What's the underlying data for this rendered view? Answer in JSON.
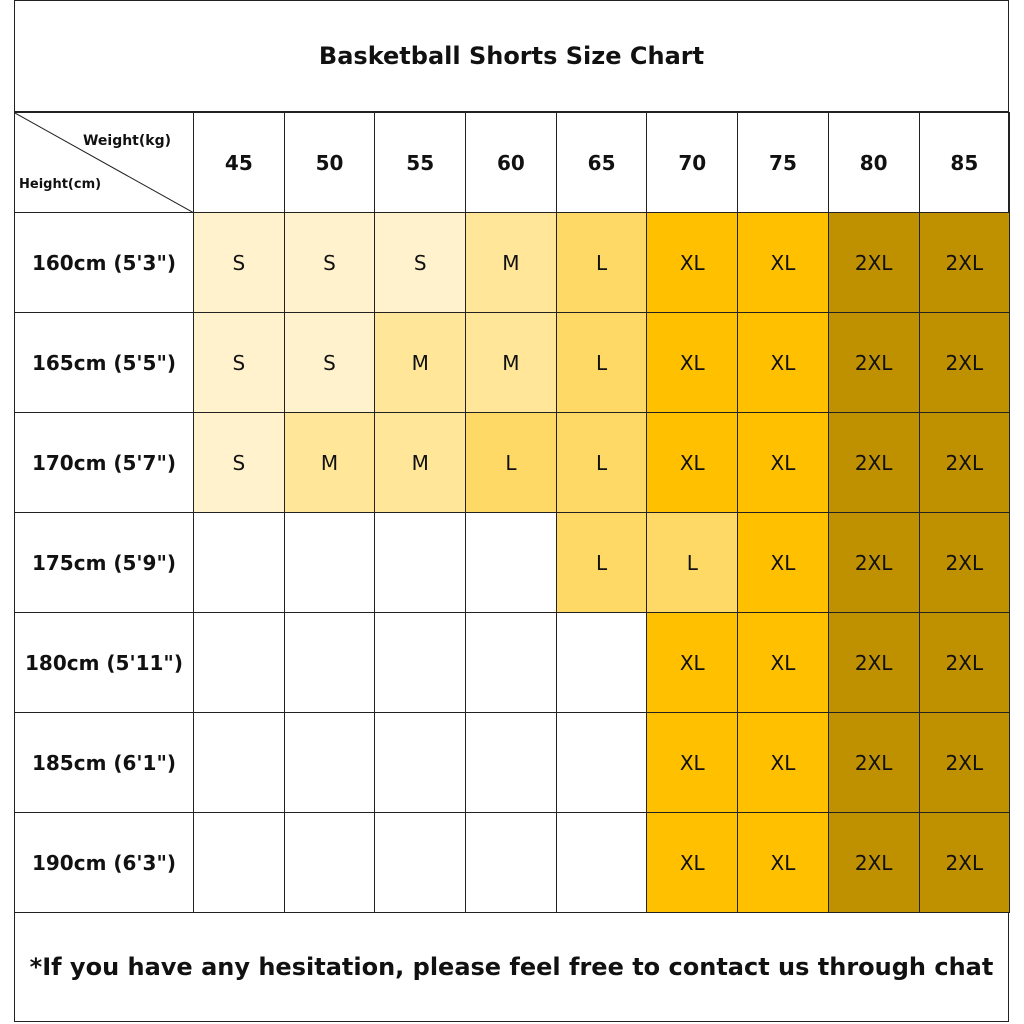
{
  "title": "Basketball Shorts Size Chart",
  "corner": {
    "weight_label": "Weight(kg)",
    "height_label": "Height(cm)"
  },
  "weights": [
    "45",
    "50",
    "55",
    "60",
    "65",
    "70",
    "75",
    "80",
    "85"
  ],
  "rows": [
    {
      "height": "160cm (5'3\")",
      "sizes": [
        "S",
        "S",
        "S",
        "M",
        "L",
        "XL",
        "XL",
        "2XL",
        "2XL"
      ]
    },
    {
      "height": "165cm (5'5\")",
      "sizes": [
        "S",
        "S",
        "M",
        "M",
        "L",
        "XL",
        "XL",
        "2XL",
        "2XL"
      ]
    },
    {
      "height": "170cm (5'7\")",
      "sizes": [
        "S",
        "M",
        "M",
        "L",
        "L",
        "XL",
        "XL",
        "2XL",
        "2XL"
      ]
    },
    {
      "height": "175cm (5'9\")",
      "sizes": [
        "",
        "",
        "",
        "",
        "L",
        "L",
        "XL",
        "2XL",
        "2XL"
      ]
    },
    {
      "height": "180cm (5'11\")",
      "sizes": [
        "",
        "",
        "",
        "",
        "",
        "XL",
        "XL",
        "2XL",
        "2XL"
      ]
    },
    {
      "height": "185cm (6'1\")",
      "sizes": [
        "",
        "",
        "",
        "",
        "",
        "XL",
        "XL",
        "2XL",
        "2XL"
      ]
    },
    {
      "height": "190cm (6'3\")",
      "sizes": [
        "",
        "",
        "",
        "",
        "",
        "XL",
        "XL",
        "2XL",
        "2XL"
      ]
    }
  ],
  "size_colors": {
    "S": "#FFF2CC",
    "M": "#FFE699",
    "L": "#FFD966",
    "XL": "#FFC000",
    "2XL": "#BF9000"
  },
  "footer_note": "*If you have any hesitation, please feel free to contact us through chat"
}
